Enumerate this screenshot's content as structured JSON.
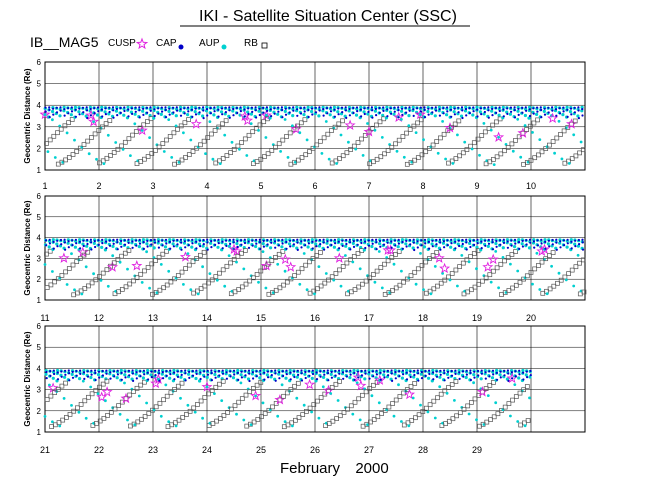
{
  "header": {
    "title": "IKI - Satellite Situation Center (SSC)",
    "satellite": "IB__MAG5"
  },
  "legend": [
    {
      "label": "CUSP",
      "marker": "star",
      "color": "#e020e0"
    },
    {
      "label": "CAP",
      "marker": "dot",
      "color": "#0000c8"
    },
    {
      "label": "AUP",
      "marker": "dot",
      "color": "#00d0d0"
    },
    {
      "label": "RB",
      "marker": "square",
      "color": "#555555"
    }
  ],
  "colors": {
    "cusp": "#e020e0",
    "cap": "#0000c8",
    "aup": "#00d0d0",
    "rb": "#555555"
  },
  "chart_data": {
    "type": "scatter",
    "month_label": "February",
    "year_label": "2000",
    "ylabel": "Geocentric Distance (Re)",
    "ylim": [
      1,
      6
    ],
    "yticks": [
      "1",
      "2",
      "3",
      "4",
      "5",
      "6"
    ],
    "orbit": {
      "perigee_re": 1.1,
      "apogee_re": 3.9,
      "period_days": 0.0695
    },
    "panels": [
      {
        "xlim": [
          1,
          11
        ],
        "day_labels": [
          "1",
          "2",
          "3",
          "4",
          "5",
          "6",
          "7",
          "8",
          "9",
          "10"
        ]
      },
      {
        "xlim": [
          11,
          21
        ],
        "day_labels": [
          "11",
          "12",
          "13",
          "14",
          "15",
          "16",
          "17",
          "18",
          "19",
          "20"
        ]
      },
      {
        "xlim": [
          21,
          30
        ],
        "day_labels": [
          "21",
          "22",
          "23",
          "24",
          "25",
          "26",
          "27",
          "28",
          "29"
        ]
      }
    ],
    "series": [
      {
        "name": "CUSP",
        "regime": "cusp",
        "range_re": [
          2.5,
          3.6
        ]
      },
      {
        "name": "CAP",
        "regime": "cap",
        "range_re": [
          3.4,
          3.9
        ]
      },
      {
        "name": "AUP",
        "regime": "aup",
        "range_re": [
          1.2,
          3.9
        ]
      },
      {
        "name": "RB",
        "regime": "rb",
        "range_re": [
          1.2,
          3.2
        ]
      }
    ]
  }
}
